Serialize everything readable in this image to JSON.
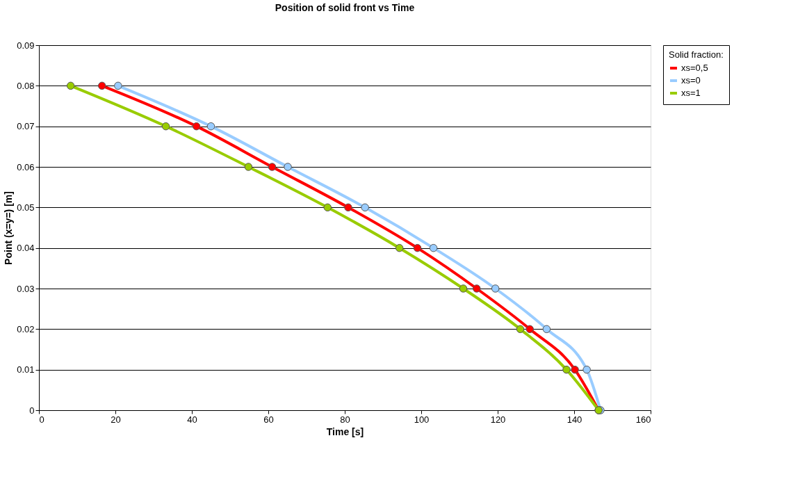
{
  "chart_data": {
    "type": "line",
    "title": "Position of solid front vs Time",
    "xlabel": "Time [s]",
    "ylabel": "Point (x=y=) [m]",
    "legend_title": "Solid fraction:",
    "legend": "right",
    "grid": "y",
    "marker": "circle",
    "line_style": "solid",
    "xlim": [
      0,
      160
    ],
    "xticks": [
      0,
      20,
      40,
      60,
      80,
      100,
      120,
      140,
      160
    ],
    "ylim": [
      0,
      0.09
    ],
    "yticks": [
      0,
      0.01,
      0.02,
      0.03,
      0.04,
      0.05,
      0.06,
      0.07,
      0.08,
      0.09
    ],
    "series": [
      {
        "name": "xs=0,5",
        "color": "#ff0000",
        "x": [
          16.5,
          41.2,
          61.0,
          80.9,
          99.0,
          114.5,
          128.4,
          140.2,
          146.4
        ],
        "values": [
          0.08,
          0.07,
          0.06,
          0.05,
          0.04,
          0.03,
          0.02,
          0.01,
          0
        ]
      },
      {
        "name": "xs=0",
        "color": "#99ccff",
        "x": [
          20.7,
          45.0,
          65.1,
          85.3,
          103.2,
          119.4,
          132.8,
          143.3,
          146.9
        ],
        "values": [
          0.08,
          0.07,
          0.06,
          0.05,
          0.04,
          0.03,
          0.02,
          0.01,
          0
        ]
      },
      {
        "name": "xs=1",
        "color": "#99cc00",
        "x": [
          8.3,
          33.2,
          54.8,
          75.5,
          94.3,
          111.0,
          125.9,
          138.0,
          146.4
        ],
        "values": [
          0.08,
          0.07,
          0.06,
          0.05,
          0.04,
          0.03,
          0.02,
          0.01,
          0
        ]
      }
    ]
  }
}
